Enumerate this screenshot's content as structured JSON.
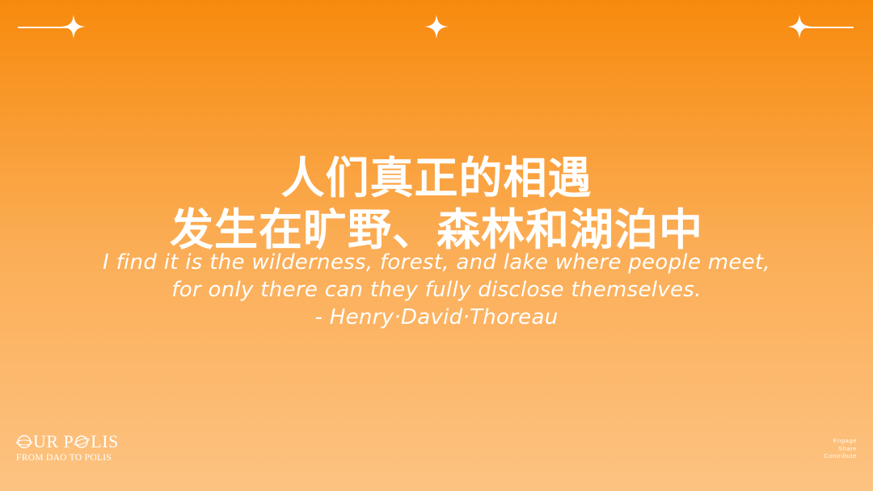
{
  "decorations": {
    "sparkle_icon": "four-point-star",
    "line_color": "#ffffff"
  },
  "quote": {
    "zh_lines": [
      "人们真正的相遇",
      "发生在旷野、森林和湖泊中"
    ],
    "en_lines": [
      "I find it is the wilderness, forest, and lake where people meet,",
      "for only there can they fully disclose themselves.",
      "- Henry·David·Thoreau"
    ]
  },
  "logo": {
    "main_prefix": "UR P",
    "main_suffix": "LIS",
    "sub": "FROM DAO TO POLIS"
  },
  "tagline": [
    "Engage",
    "Share",
    "Contribute"
  ],
  "colors": {
    "gradient_top": "#f78a0d",
    "gradient_bottom": "#fdc382",
    "text": "#ffffff"
  }
}
